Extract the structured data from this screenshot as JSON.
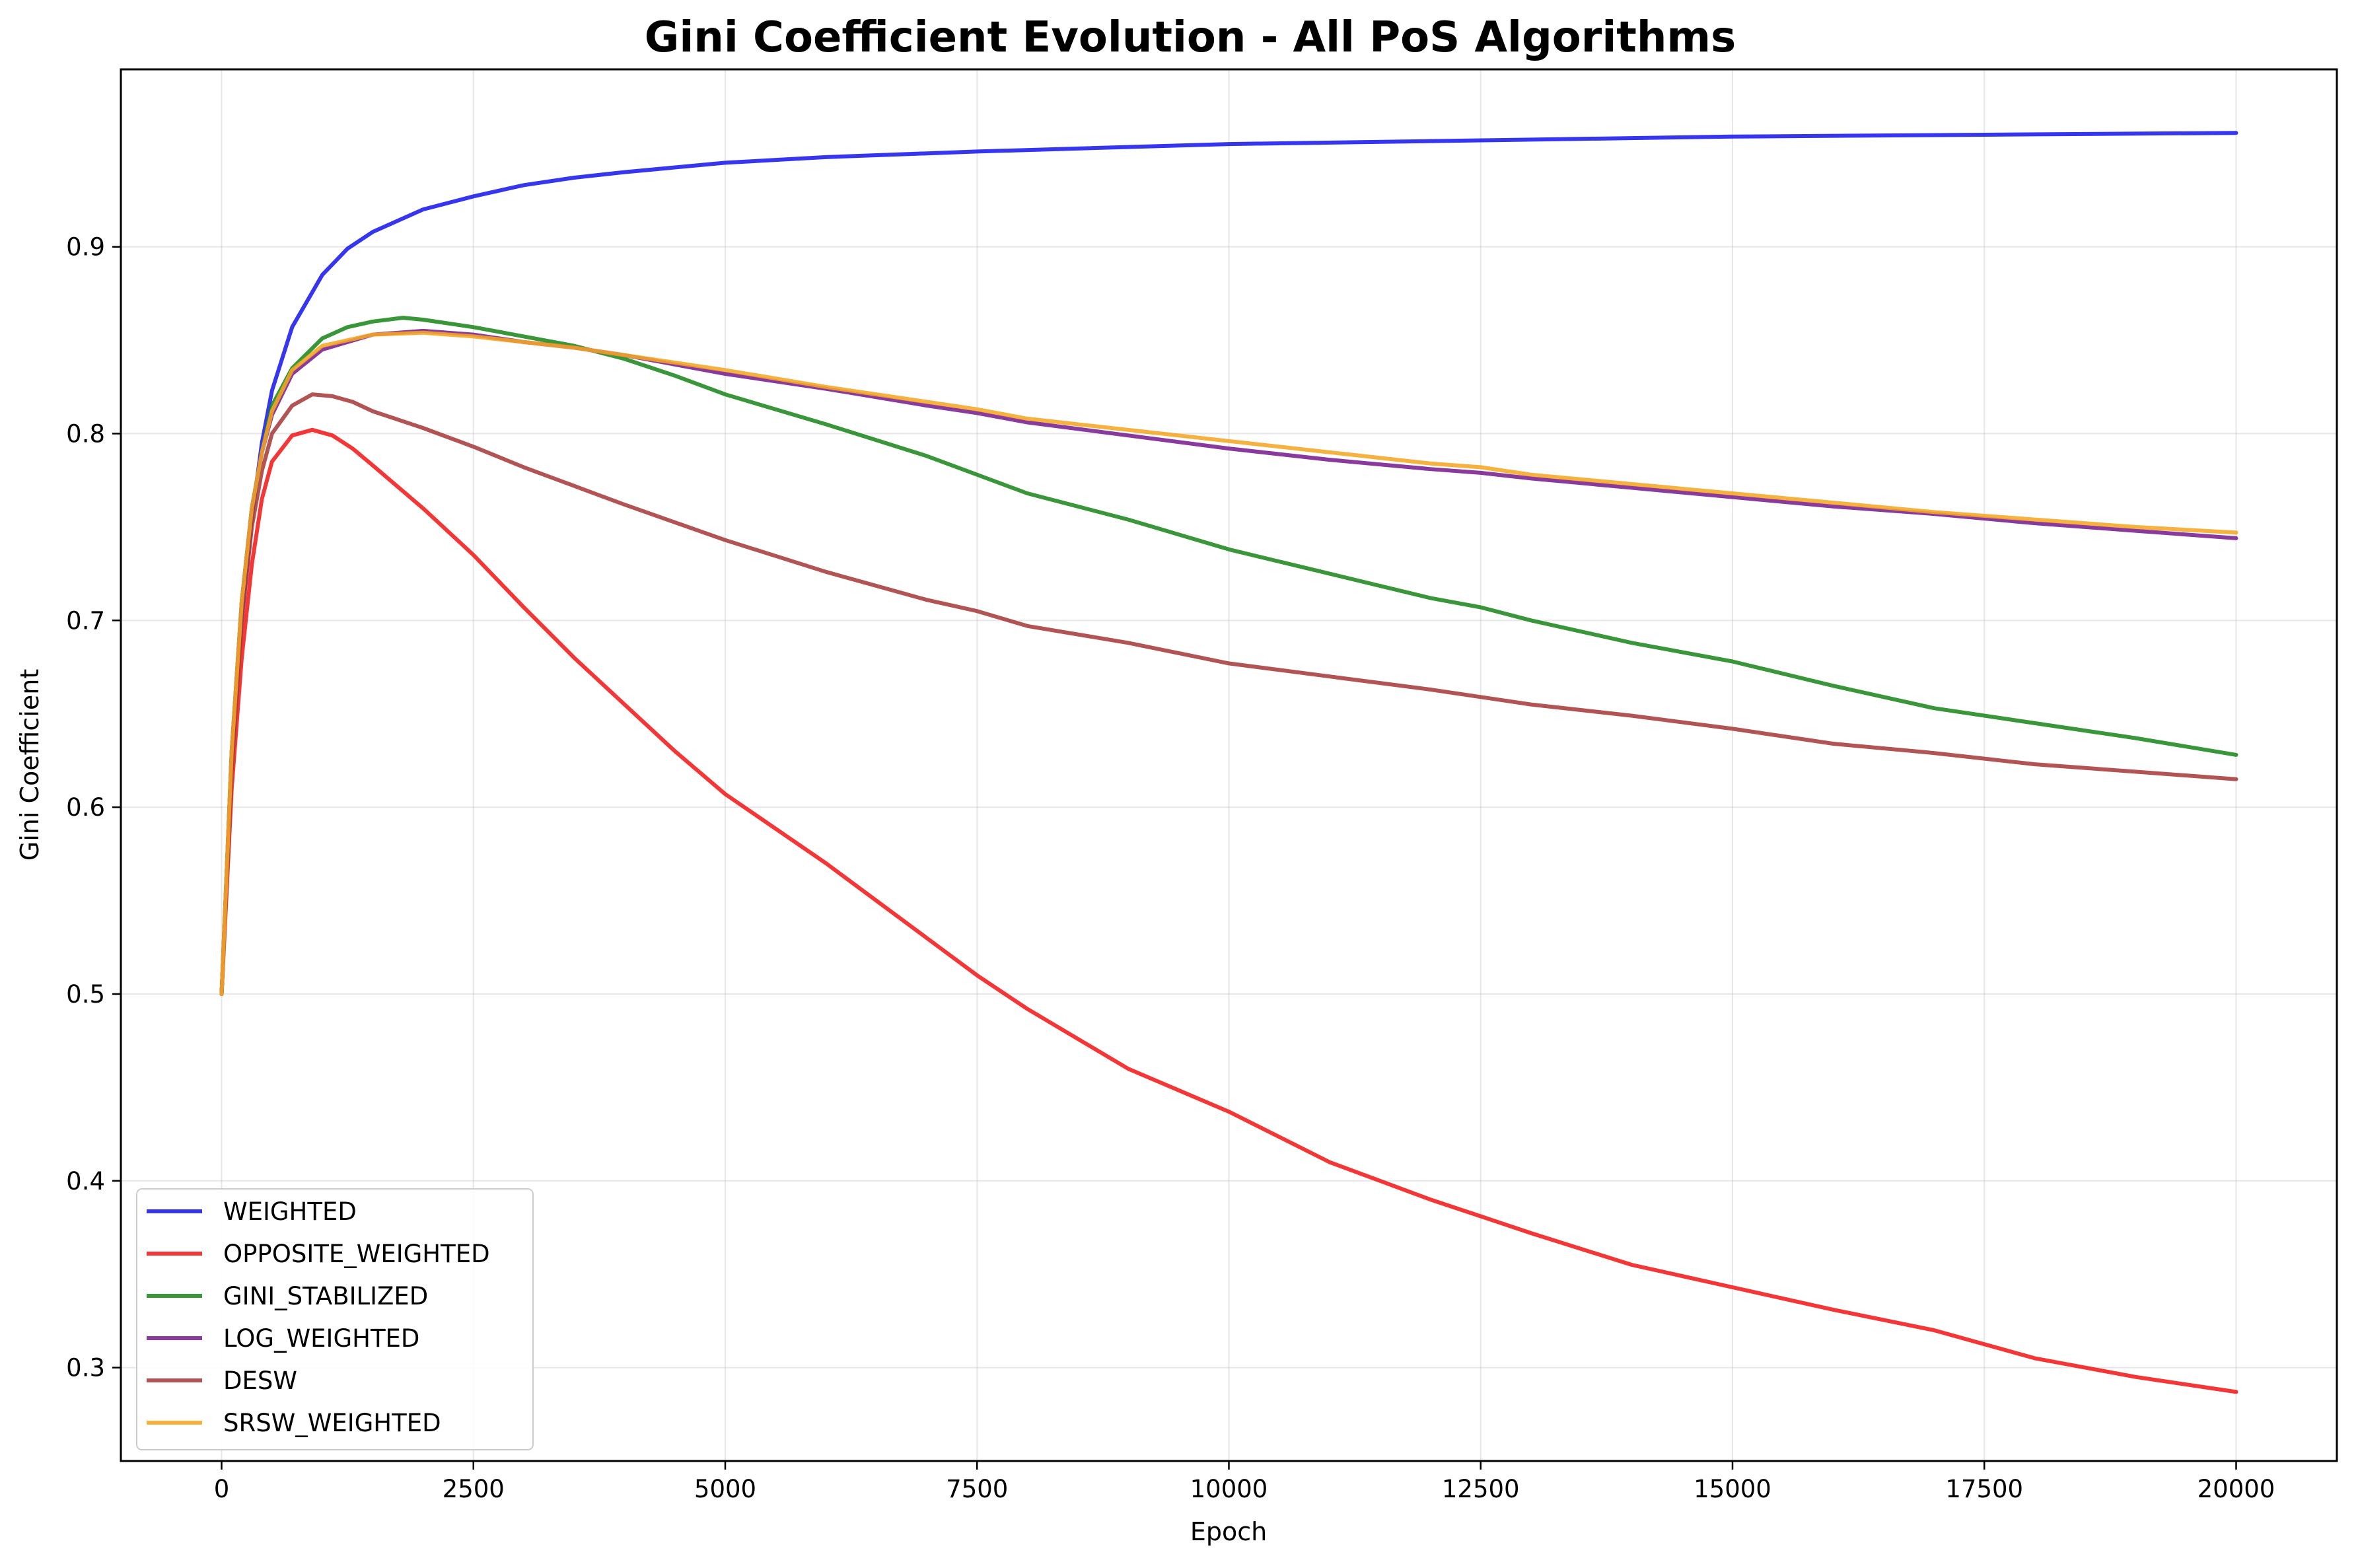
{
  "chart_data": {
    "type": "line",
    "title": "Gini Coefficient Evolution - All PoS Algorithms",
    "xlabel": "Epoch",
    "ylabel": "Gini Coefficient",
    "xlim": [
      -1000,
      21000
    ],
    "ylim": [
      0.25,
      0.995
    ],
    "x_ticks": [
      0,
      2500,
      5000,
      7500,
      10000,
      12500,
      15000,
      17500,
      20000
    ],
    "x_tick_labels": [
      "0",
      "2500",
      "5000",
      "7500",
      "10000",
      "12500",
      "15000",
      "17500",
      "20000"
    ],
    "y_ticks": [
      0.3,
      0.4,
      0.5,
      0.6,
      0.7,
      0.8,
      0.9
    ],
    "y_tick_labels": [
      "0.3",
      "0.4",
      "0.5",
      "0.6",
      "0.7",
      "0.8",
      "0.9"
    ],
    "grid": true,
    "legend_position": "lower-left",
    "series": [
      {
        "name": "WEIGHTED",
        "color": "#1a1aee",
        "points": [
          [
            0,
            0.5
          ],
          [
            100,
            0.62
          ],
          [
            200,
            0.7
          ],
          [
            300,
            0.755
          ],
          [
            400,
            0.795
          ],
          [
            500,
            0.823
          ],
          [
            700,
            0.857
          ],
          [
            1000,
            0.885
          ],
          [
            1250,
            0.899
          ],
          [
            1500,
            0.908
          ],
          [
            2000,
            0.92
          ],
          [
            2500,
            0.927
          ],
          [
            3000,
            0.933
          ],
          [
            3500,
            0.937
          ],
          [
            4000,
            0.94
          ],
          [
            5000,
            0.945
          ],
          [
            6000,
            0.948
          ],
          [
            7500,
            0.951
          ],
          [
            10000,
            0.955
          ],
          [
            12500,
            0.957
          ],
          [
            15000,
            0.959
          ],
          [
            17500,
            0.96
          ],
          [
            20000,
            0.961
          ]
        ]
      },
      {
        "name": "OPPOSITE_WEIGHTED",
        "color": "#f21a1a",
        "points": [
          [
            0,
            0.5
          ],
          [
            100,
            0.61
          ],
          [
            200,
            0.68
          ],
          [
            300,
            0.73
          ],
          [
            400,
            0.765
          ],
          [
            500,
            0.785
          ],
          [
            700,
            0.799
          ],
          [
            900,
            0.802
          ],
          [
            1100,
            0.799
          ],
          [
            1300,
            0.792
          ],
          [
            1500,
            0.783
          ],
          [
            2000,
            0.76
          ],
          [
            2500,
            0.735
          ],
          [
            3000,
            0.707
          ],
          [
            3500,
            0.68
          ],
          [
            4000,
            0.655
          ],
          [
            4500,
            0.63
          ],
          [
            5000,
            0.607
          ],
          [
            6000,
            0.57
          ],
          [
            7000,
            0.53
          ],
          [
            7500,
            0.51
          ],
          [
            8000,
            0.492
          ],
          [
            9000,
            0.46
          ],
          [
            10000,
            0.437
          ],
          [
            11000,
            0.41
          ],
          [
            12000,
            0.39
          ],
          [
            12500,
            0.381
          ],
          [
            13000,
            0.372
          ],
          [
            14000,
            0.355
          ],
          [
            15000,
            0.343
          ],
          [
            16000,
            0.331
          ],
          [
            17000,
            0.32
          ],
          [
            18000,
            0.305
          ],
          [
            19000,
            0.295
          ],
          [
            20000,
            0.287
          ]
        ]
      },
      {
        "name": "GINI_STABILIZED",
        "color": "#1e881e",
        "points": [
          [
            0,
            0.5
          ],
          [
            100,
            0.63
          ],
          [
            200,
            0.71
          ],
          [
            300,
            0.76
          ],
          [
            400,
            0.79
          ],
          [
            500,
            0.815
          ],
          [
            700,
            0.835
          ],
          [
            1000,
            0.851
          ],
          [
            1250,
            0.857
          ],
          [
            1500,
            0.86
          ],
          [
            1800,
            0.862
          ],
          [
            2000,
            0.861
          ],
          [
            2500,
            0.857
          ],
          [
            3000,
            0.852
          ],
          [
            3500,
            0.847
          ],
          [
            4000,
            0.84
          ],
          [
            4500,
            0.831
          ],
          [
            5000,
            0.821
          ],
          [
            6000,
            0.805
          ],
          [
            7000,
            0.788
          ],
          [
            7500,
            0.778
          ],
          [
            8000,
            0.768
          ],
          [
            9000,
            0.754
          ],
          [
            10000,
            0.738
          ],
          [
            11000,
            0.725
          ],
          [
            12000,
            0.712
          ],
          [
            12500,
            0.707
          ],
          [
            13000,
            0.7
          ],
          [
            14000,
            0.688
          ],
          [
            15000,
            0.678
          ],
          [
            16000,
            0.665
          ],
          [
            17000,
            0.653
          ],
          [
            18000,
            0.645
          ],
          [
            19000,
            0.637
          ],
          [
            20000,
            0.628
          ]
        ]
      },
      {
        "name": "LOG_WEIGHTED",
        "color": "#7a1f8f",
        "points": [
          [
            0,
            0.5
          ],
          [
            100,
            0.63
          ],
          [
            200,
            0.71
          ],
          [
            300,
            0.76
          ],
          [
            400,
            0.79
          ],
          [
            500,
            0.81
          ],
          [
            700,
            0.832
          ],
          [
            1000,
            0.845
          ],
          [
            1500,
            0.853
          ],
          [
            2000,
            0.855
          ],
          [
            2500,
            0.853
          ],
          [
            3000,
            0.849
          ],
          [
            3500,
            0.846
          ],
          [
            4000,
            0.842
          ],
          [
            5000,
            0.832
          ],
          [
            6000,
            0.824
          ],
          [
            7000,
            0.815
          ],
          [
            7500,
            0.811
          ],
          [
            8000,
            0.806
          ],
          [
            9000,
            0.799
          ],
          [
            10000,
            0.792
          ],
          [
            11000,
            0.786
          ],
          [
            12000,
            0.781
          ],
          [
            12500,
            0.779
          ],
          [
            13000,
            0.776
          ],
          [
            14000,
            0.771
          ],
          [
            15000,
            0.766
          ],
          [
            16000,
            0.761
          ],
          [
            17000,
            0.757
          ],
          [
            18000,
            0.752
          ],
          [
            19000,
            0.748
          ],
          [
            20000,
            0.744
          ]
        ]
      },
      {
        "name": "DESW",
        "color": "#a83c3c",
        "points": [
          [
            0,
            0.5
          ],
          [
            100,
            0.62
          ],
          [
            200,
            0.7
          ],
          [
            300,
            0.75
          ],
          [
            400,
            0.78
          ],
          [
            500,
            0.8
          ],
          [
            700,
            0.815
          ],
          [
            900,
            0.821
          ],
          [
            1100,
            0.82
          ],
          [
            1300,
            0.817
          ],
          [
            1500,
            0.812
          ],
          [
            2000,
            0.803
          ],
          [
            2500,
            0.793
          ],
          [
            3000,
            0.782
          ],
          [
            3500,
            0.772
          ],
          [
            4000,
            0.762
          ],
          [
            5000,
            0.743
          ],
          [
            6000,
            0.726
          ],
          [
            7000,
            0.711
          ],
          [
            7500,
            0.705
          ],
          [
            8000,
            0.697
          ],
          [
            9000,
            0.688
          ],
          [
            10000,
            0.677
          ],
          [
            11000,
            0.67
          ],
          [
            12000,
            0.663
          ],
          [
            12500,
            0.659
          ],
          [
            13000,
            0.655
          ],
          [
            14000,
            0.649
          ],
          [
            15000,
            0.642
          ],
          [
            16000,
            0.634
          ],
          [
            17000,
            0.629
          ],
          [
            18000,
            0.623
          ],
          [
            19000,
            0.619
          ],
          [
            20000,
            0.615
          ]
        ]
      },
      {
        "name": "SRSW_WEIGHTED",
        "color": "#f5a623",
        "points": [
          [
            0,
            0.5
          ],
          [
            100,
            0.63
          ],
          [
            200,
            0.71
          ],
          [
            300,
            0.76
          ],
          [
            400,
            0.79
          ],
          [
            500,
            0.812
          ],
          [
            700,
            0.834
          ],
          [
            1000,
            0.847
          ],
          [
            1500,
            0.853
          ],
          [
            2000,
            0.854
          ],
          [
            2500,
            0.852
          ],
          [
            3000,
            0.849
          ],
          [
            3500,
            0.846
          ],
          [
            4000,
            0.842
          ],
          [
            5000,
            0.834
          ],
          [
            6000,
            0.825
          ],
          [
            7000,
            0.817
          ],
          [
            7500,
            0.813
          ],
          [
            8000,
            0.808
          ],
          [
            9000,
            0.802
          ],
          [
            10000,
            0.796
          ],
          [
            11000,
            0.79
          ],
          [
            12000,
            0.784
          ],
          [
            12500,
            0.782
          ],
          [
            13000,
            0.778
          ],
          [
            14000,
            0.773
          ],
          [
            15000,
            0.768
          ],
          [
            16000,
            0.763
          ],
          [
            17000,
            0.758
          ],
          [
            18000,
            0.754
          ],
          [
            19000,
            0.75
          ],
          [
            20000,
            0.747
          ]
        ]
      }
    ]
  }
}
